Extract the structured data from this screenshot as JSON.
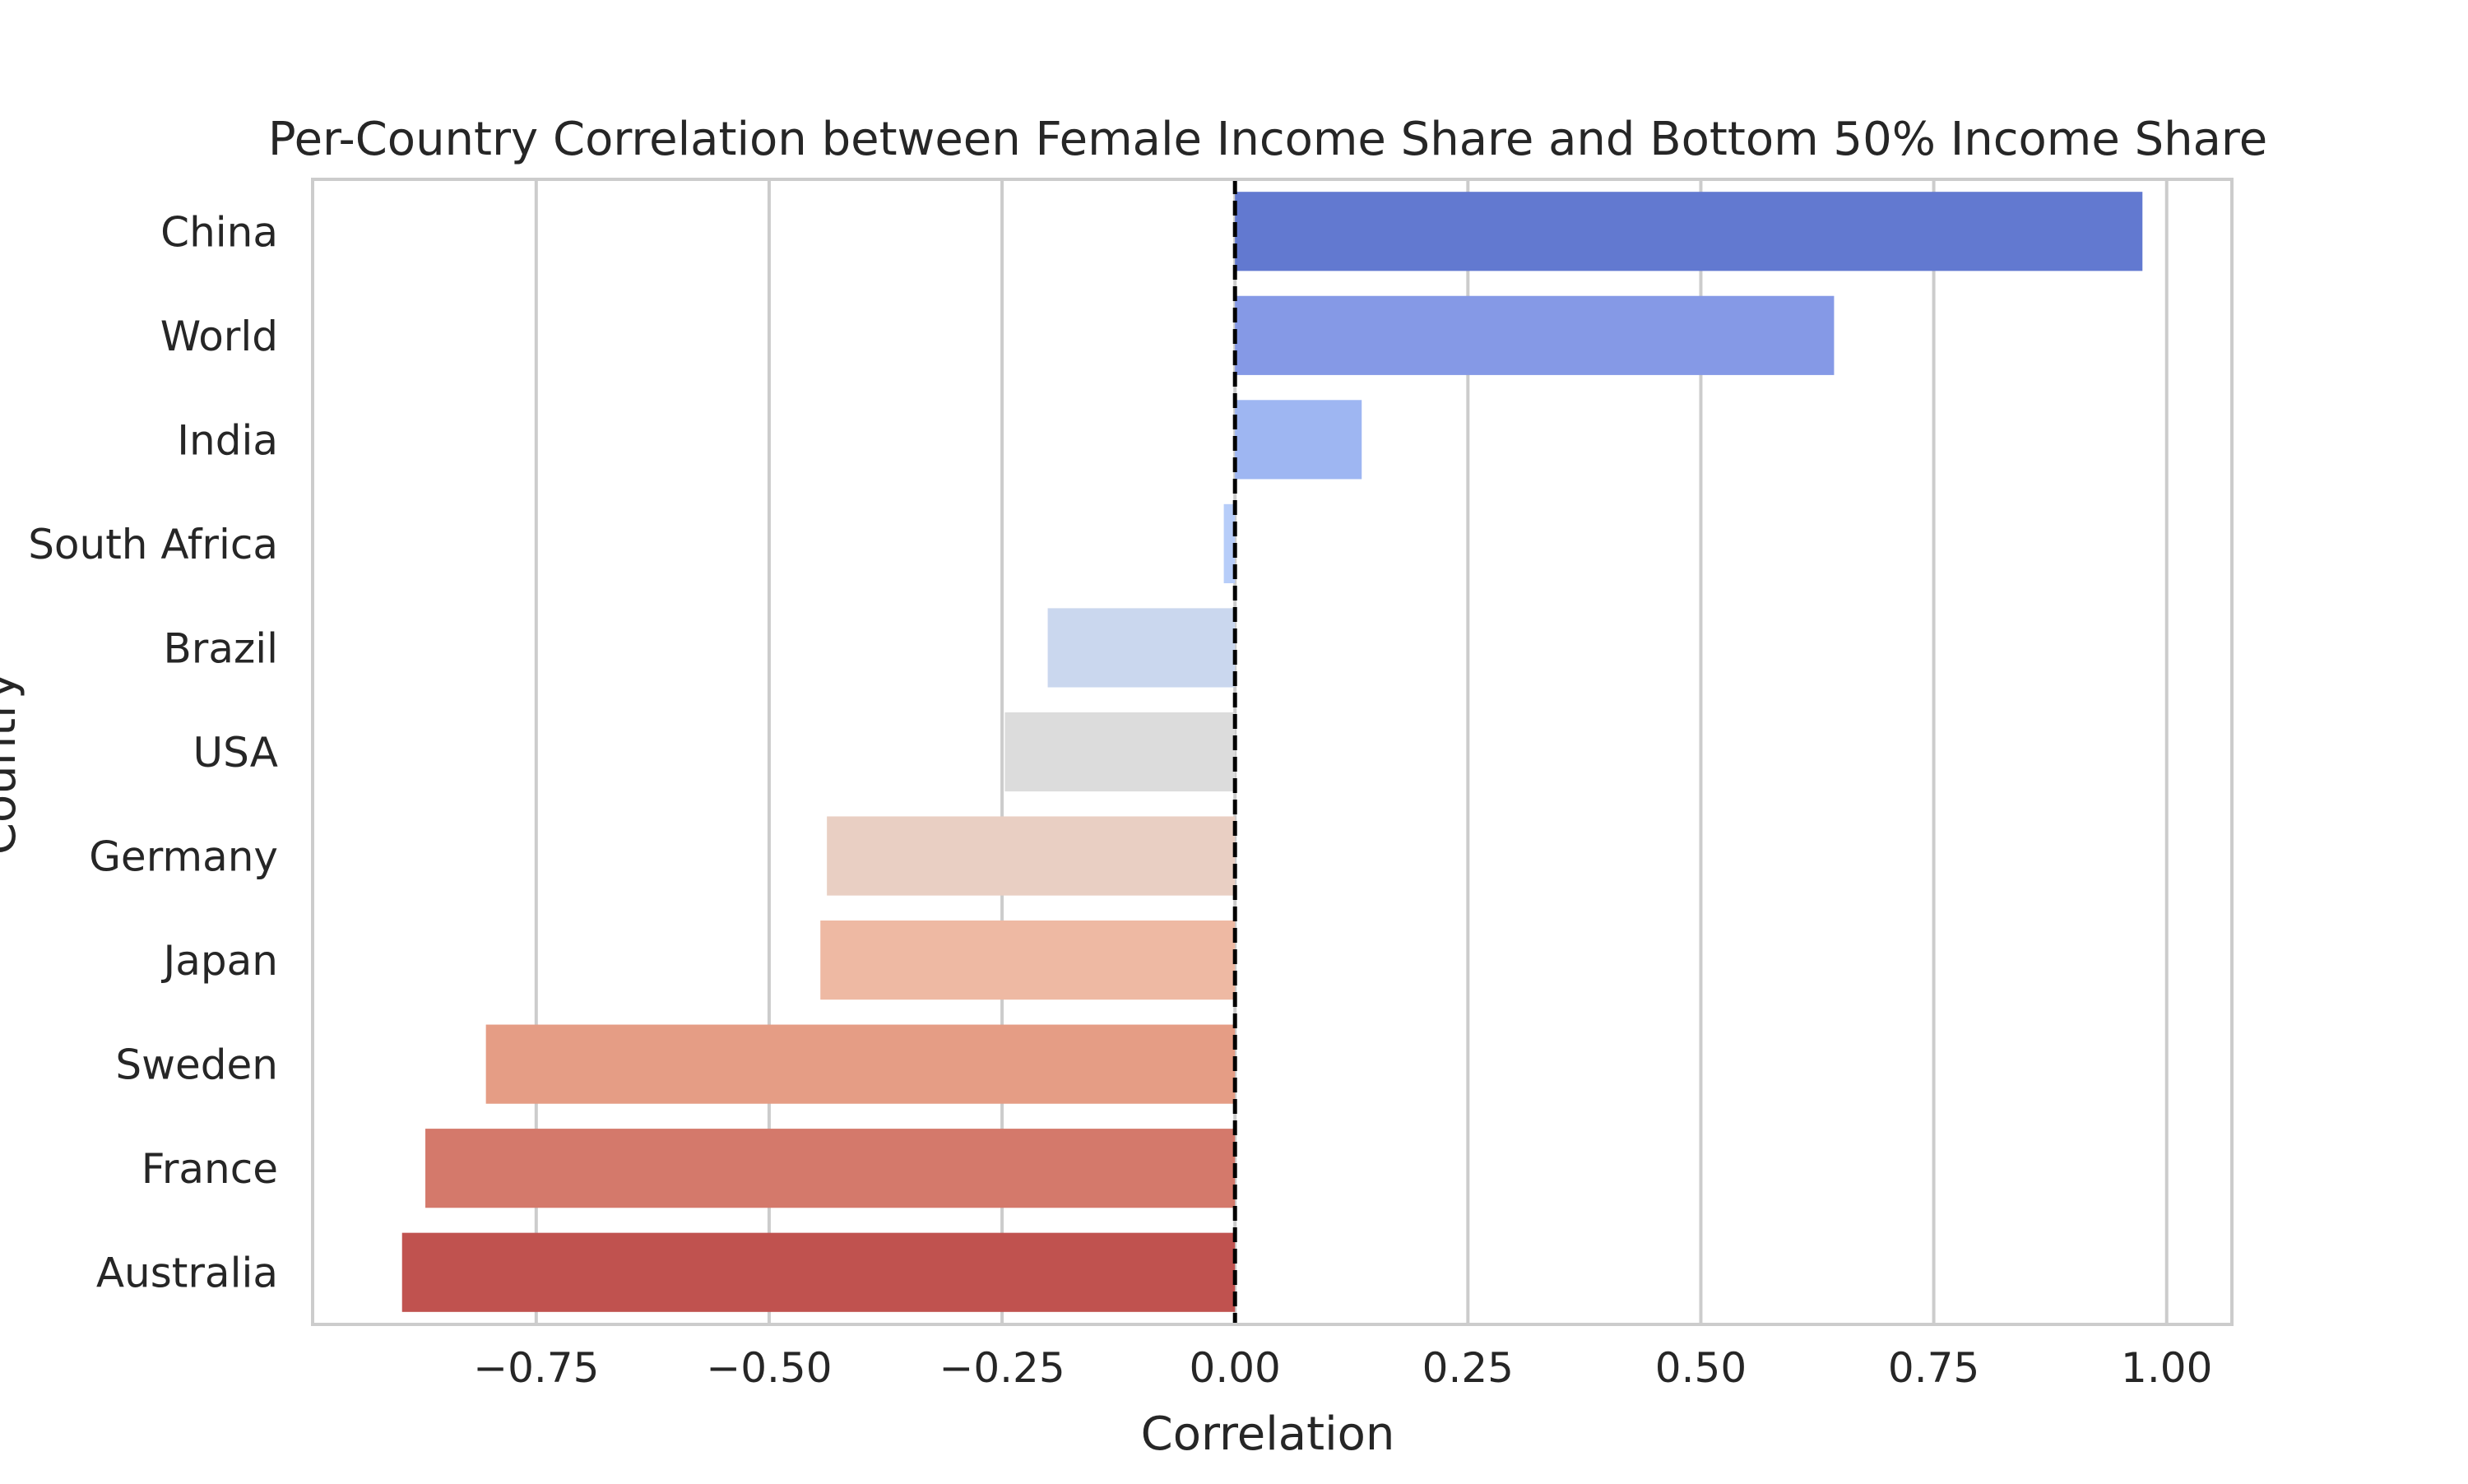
{
  "chart_data": {
    "type": "bar",
    "orientation": "horizontal",
    "title": "Per-Country Correlation between Female Income Share and Bottom 50% Income Share",
    "xlabel": "Correlation",
    "ylabel": "Country",
    "xlim": [
      -0.99,
      1.07
    ],
    "xticks": [
      -0.75,
      -0.5,
      -0.25,
      0.0,
      0.25,
      0.5,
      0.75,
      1.0
    ],
    "xtick_labels": [
      "−0.75",
      "−0.50",
      "−0.25",
      "0.00",
      "0.25",
      "0.50",
      "0.75",
      "1.00"
    ],
    "grid": "vertical",
    "reference_line": {
      "x": 0.0,
      "style": "dashed",
      "color": "#000000"
    },
    "categories": [
      "China",
      "World",
      "India",
      "South Africa",
      "Brazil",
      "USA",
      "Germany",
      "Japan",
      "Sweden",
      "France",
      "Australia"
    ],
    "values": [
      0.974,
      0.643,
      0.136,
      -0.012,
      -0.201,
      -0.247,
      -0.438,
      -0.445,
      -0.804,
      -0.869,
      -0.894
    ],
    "colors": [
      "#6279d0",
      "#8599e6",
      "#9eb6f2",
      "#b7cdf9",
      "#cad7ee",
      "#dcdcdc",
      "#e9cfc3",
      "#eeb9a3",
      "#e59d85",
      "#d4796b",
      "#c0524f"
    ]
  }
}
